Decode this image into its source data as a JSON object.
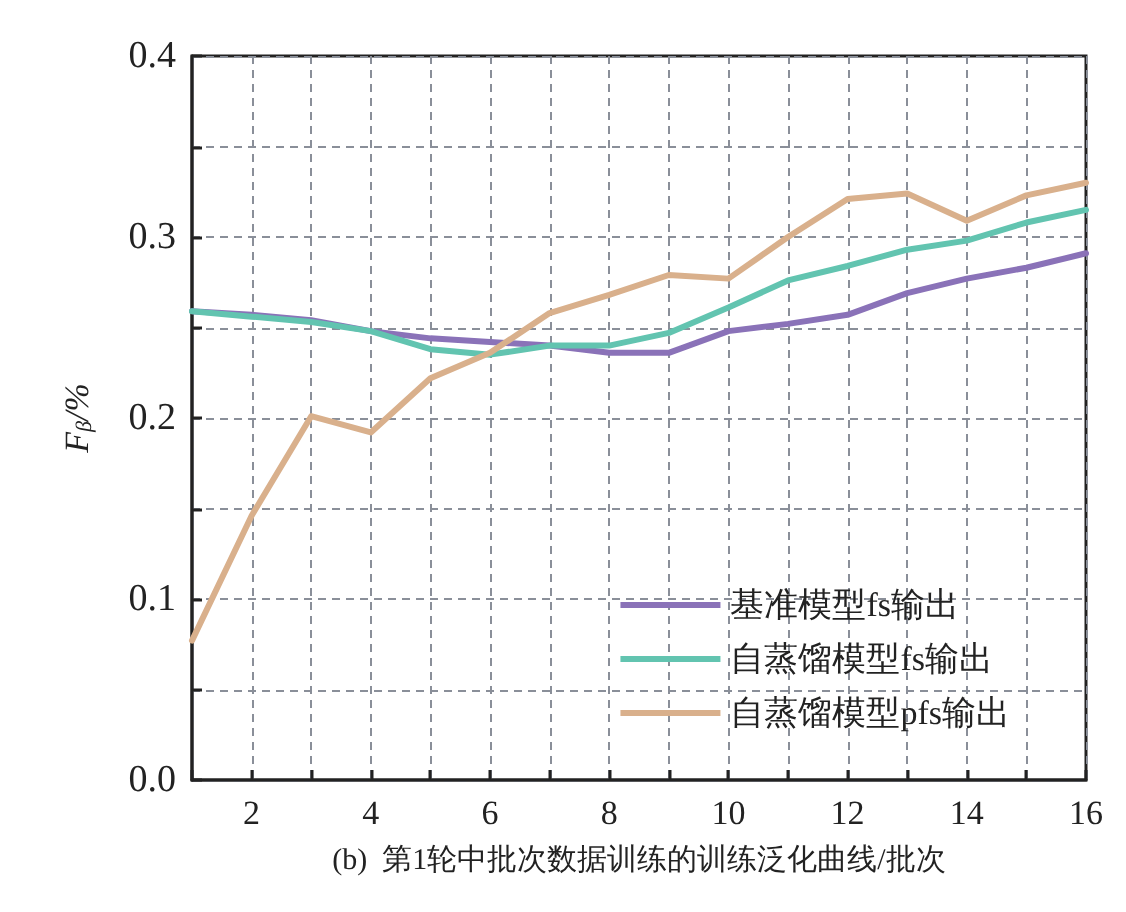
{
  "chart_data": {
    "type": "line",
    "xlabel": "(b)  第1轮中批次数据训练的训练泛化曲线/批次",
    "ylabel": "F$_{β}$/%",
    "x": [
      1,
      2,
      3,
      4,
      5,
      6,
      7,
      8,
      9,
      10,
      11,
      12,
      13,
      14,
      15,
      16
    ],
    "series": [
      {
        "name": "基准模型fs输出",
        "color": "#8a72b8",
        "values": [
          0.259,
          0.257,
          0.254,
          0.248,
          0.244,
          0.242,
          0.24,
          0.236,
          0.236,
          0.248,
          0.252,
          0.257,
          0.269,
          0.277,
          0.283,
          0.291
        ]
      },
      {
        "name": "自蒸馏模型fs输出",
        "color": "#62c4b0",
        "values": [
          0.259,
          0.256,
          0.253,
          0.248,
          0.238,
          0.235,
          0.24,
          0.24,
          0.247,
          0.261,
          0.276,
          0.284,
          0.293,
          0.298,
          0.308,
          0.315
        ]
      },
      {
        "name": "自蒸馏模型pfs输出",
        "color": "#d9b08c",
        "values": [
          0.077,
          0.146,
          0.201,
          0.192,
          0.222,
          0.236,
          0.258,
          0.268,
          0.279,
          0.277,
          0.3,
          0.321,
          0.324,
          0.309,
          0.323,
          0.33
        ]
      }
    ],
    "xlim": [
      1,
      16
    ],
    "xticks": [
      {
        "value": 1,
        "label": null
      },
      2,
      {
        "value": 3,
        "label": null
      },
      4,
      {
        "value": 5,
        "label": null
      },
      6,
      {
        "value": 7,
        "label": null
      },
      8,
      {
        "value": 9,
        "label": null
      },
      10,
      {
        "value": 11,
        "label": null
      },
      12,
      {
        "value": 13,
        "label": null
      },
      14,
      {
        "value": 15,
        "label": null
      },
      16
    ],
    "ylim": [
      0,
      0.4
    ],
    "yticks": [
      {
        "value": 0,
        "label": "0.0"
      },
      {
        "value": 0.05,
        "label": null
      },
      0.1,
      {
        "value": 0.15,
        "label": null
      },
      0.2,
      {
        "value": 0.25,
        "label": null
      },
      0.3,
      {
        "value": 0.35,
        "label": null
      },
      0.4
    ],
    "grid": true,
    "legend": "bottom right",
    "marker": "none",
    "line_style": "solid"
  }
}
